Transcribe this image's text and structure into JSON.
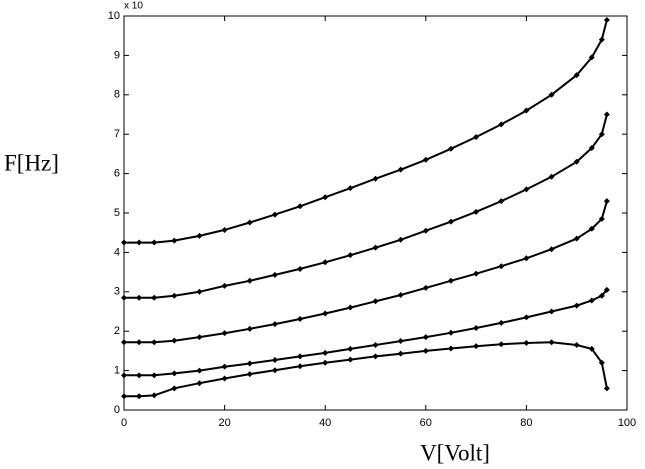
{
  "chart_data": {
    "type": "line",
    "y_label": "F[Hz]",
    "x_label": "V[Volt]",
    "y_multiplier": "x 10",
    "x": [
      0,
      3,
      6,
      10,
      15,
      20,
      25,
      30,
      35,
      40,
      45,
      50,
      55,
      60,
      65,
      70,
      75,
      80,
      85,
      90,
      93,
      95,
      96
    ],
    "series": [
      {
        "color": "#000000",
        "values": [
          4.25,
          4.25,
          4.25,
          4.3,
          4.42,
          4.57,
          4.76,
          4.96,
          5.17,
          5.4,
          5.63,
          5.87,
          6.1,
          6.35,
          6.63,
          6.93,
          7.25,
          7.6,
          8.0,
          8.5,
          8.95,
          9.4,
          9.9
        ]
      },
      {
        "color": "#000000",
        "values": [
          2.85,
          2.85,
          2.85,
          2.9,
          3.0,
          3.15,
          3.28,
          3.43,
          3.58,
          3.75,
          3.93,
          4.12,
          4.32,
          4.55,
          4.78,
          5.03,
          5.3,
          5.6,
          5.92,
          6.3,
          6.65,
          7.0,
          7.5
        ]
      },
      {
        "color": "#000000",
        "values": [
          1.72,
          1.72,
          1.72,
          1.76,
          1.85,
          1.95,
          2.06,
          2.18,
          2.31,
          2.45,
          2.6,
          2.76,
          2.92,
          3.1,
          3.28,
          3.46,
          3.65,
          3.85,
          4.08,
          4.35,
          4.6,
          4.85,
          5.3
        ]
      },
      {
        "color": "#000000",
        "values": [
          0.88,
          0.88,
          0.88,
          0.93,
          1.0,
          1.1,
          1.18,
          1.27,
          1.36,
          1.45,
          1.55,
          1.65,
          1.75,
          1.85,
          1.96,
          2.08,
          2.21,
          2.35,
          2.5,
          2.65,
          2.78,
          2.9,
          3.05
        ]
      },
      {
        "color": "#000000",
        "values": [
          0.35,
          0.35,
          0.37,
          0.55,
          0.68,
          0.8,
          0.91,
          1.01,
          1.11,
          1.2,
          1.28,
          1.36,
          1.43,
          1.5,
          1.56,
          1.62,
          1.67,
          1.7,
          1.72,
          1.65,
          1.55,
          1.2,
          0.55
        ]
      }
    ],
    "xlim": [
      0,
      100
    ],
    "xticks": [
      0,
      20,
      40,
      60,
      80,
      100
    ],
    "ylim": [
      0,
      10
    ],
    "yticks": [
      0,
      1,
      2,
      3,
      4,
      5,
      6,
      7,
      8,
      9,
      10
    ],
    "grid": false
  }
}
